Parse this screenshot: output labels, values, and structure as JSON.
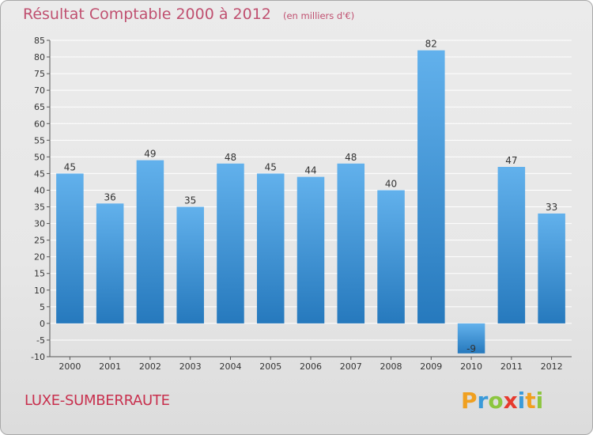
{
  "header": {
    "title": "Résultat Comptable 2000 à 2012",
    "unit": "(en milliers d'€)"
  },
  "footer": {
    "commune": "LUXE-SUMBERRAUTE",
    "logo_text": "Proxiti"
  },
  "chart_data": {
    "type": "bar",
    "title": "Résultat Comptable 2000 à 2012",
    "xlabel": "",
    "ylabel": "",
    "categories": [
      "2000",
      "2001",
      "2002",
      "2003",
      "2004",
      "2005",
      "2006",
      "2007",
      "2008",
      "2009",
      "2010",
      "2011",
      "2012"
    ],
    "values": [
      45,
      36,
      49,
      35,
      48,
      45,
      44,
      48,
      40,
      82,
      -9,
      47,
      33
    ],
    "value_labels": [
      "45",
      "36",
      "49",
      "35",
      "48",
      "45",
      "44",
      "48",
      "40",
      "82",
      "-9",
      "47",
      "33"
    ],
    "ylim": [
      -10,
      85
    ],
    "yticks": [
      -10,
      -5,
      0,
      5,
      10,
      15,
      20,
      25,
      30,
      35,
      40,
      45,
      50,
      55,
      60,
      65,
      70,
      75,
      80,
      85
    ],
    "ytick_labels": [
      "-10",
      "-5",
      "0",
      "5",
      "10",
      "15",
      "20",
      "25",
      "30",
      "35",
      "40",
      "45",
      "50",
      "55",
      "60",
      "65",
      "70",
      "75",
      "80",
      "85"
    ],
    "grid": true,
    "colors": {
      "bar_top": "#62b1ec",
      "bar_bottom": "#2679bd",
      "grid": "#ffffff",
      "axis": "#555555"
    }
  }
}
